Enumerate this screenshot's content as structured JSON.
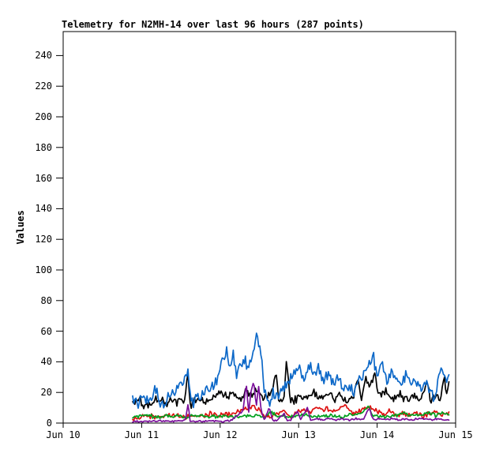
{
  "colors": {
    "background": "#ffffff",
    "text": "#000000",
    "plot_border": "#000000"
  },
  "chart_data": {
    "type": "line",
    "title": "Telemetry for N2MH-14 over last 96 hours (287 points)",
    "ylabel": "Values",
    "xlabel": "",
    "grid": false,
    "legend": "none",
    "ylim": [
      0,
      256
    ],
    "yticks": [
      0,
      20,
      40,
      60,
      80,
      100,
      120,
      140,
      160,
      180,
      200,
      220,
      240
    ],
    "xticks": [
      "Jun 10",
      "Jun 11",
      "Jun 12",
      "Jun 13",
      "Jun 14",
      "Jun 15"
    ],
    "x_span_days": 5,
    "points_per_series": 287,
    "time_window_hours": 96,
    "data_start_day": 0.885,
    "data_end_day": 4.914,
    "series": [
      {
        "name": "series-red",
        "color": "#dd1010",
        "noise": 1.3,
        "keyframes": [
          [
            0,
            3
          ],
          [
            4,
            5
          ],
          [
            8,
            4
          ],
          [
            12,
            6
          ],
          [
            16,
            4
          ],
          [
            20,
            5
          ],
          [
            24,
            6
          ],
          [
            28,
            5
          ],
          [
            32,
            7
          ],
          [
            34,
            10
          ],
          [
            36,
            11
          ],
          [
            38,
            9
          ],
          [
            40,
            5
          ],
          [
            42,
            4
          ],
          [
            44,
            6
          ],
          [
            46,
            8
          ],
          [
            48,
            5
          ],
          [
            50,
            7
          ],
          [
            52,
            9
          ],
          [
            54,
            7
          ],
          [
            56,
            10
          ],
          [
            57.5,
            8
          ],
          [
            59,
            10
          ],
          [
            61,
            7
          ],
          [
            63,
            10
          ],
          [
            64.5,
            12
          ],
          [
            66,
            8
          ],
          [
            68,
            6
          ],
          [
            70,
            9
          ],
          [
            72,
            11
          ],
          [
            74,
            8
          ],
          [
            76,
            6
          ],
          [
            78,
            8
          ],
          [
            80,
            5
          ],
          [
            82,
            7
          ],
          [
            84,
            5
          ],
          [
            86,
            7
          ],
          [
            88,
            4
          ],
          [
            90,
            6
          ],
          [
            92,
            8
          ],
          [
            94,
            5
          ],
          [
            96,
            7
          ]
        ]
      },
      {
        "name": "series-green",
        "color": "#00a01e",
        "noise": 0.9,
        "keyframes": [
          [
            0,
            4
          ],
          [
            4,
            5
          ],
          [
            8,
            4
          ],
          [
            12,
            5
          ],
          [
            16,
            4
          ],
          [
            20,
            5
          ],
          [
            24,
            4
          ],
          [
            28,
            5
          ],
          [
            32,
            4
          ],
          [
            36,
            5
          ],
          [
            40,
            4
          ],
          [
            42,
            7
          ],
          [
            44,
            5
          ],
          [
            48,
            4
          ],
          [
            52,
            5
          ],
          [
            56,
            4
          ],
          [
            60,
            5
          ],
          [
            64,
            4
          ],
          [
            66,
            6
          ],
          [
            68,
            5
          ],
          [
            70,
            8
          ],
          [
            71.8,
            11
          ],
          [
            73,
            5
          ],
          [
            76,
            4
          ],
          [
            80,
            5
          ],
          [
            82,
            7
          ],
          [
            84,
            5
          ],
          [
            86,
            6
          ],
          [
            88,
            5
          ],
          [
            90,
            7
          ],
          [
            92,
            5
          ],
          [
            94,
            7
          ],
          [
            96,
            5
          ]
        ]
      },
      {
        "name": "series-black",
        "color": "#000000",
        "noise": 2.4,
        "keyframes": [
          [
            0,
            13
          ],
          [
            2,
            15
          ],
          [
            4,
            11
          ],
          [
            6,
            14
          ],
          [
            8,
            16
          ],
          [
            10,
            12
          ],
          [
            12,
            15
          ],
          [
            14,
            13
          ],
          [
            16,
            17
          ],
          [
            16.8,
            33
          ],
          [
            17.5,
            12
          ],
          [
            19,
            14
          ],
          [
            21,
            16
          ],
          [
            23,
            13
          ],
          [
            25,
            17
          ],
          [
            27,
            20
          ],
          [
            29,
            16
          ],
          [
            31,
            19
          ],
          [
            33,
            15
          ],
          [
            34.5,
            21
          ],
          [
            36,
            17
          ],
          [
            37.5,
            22
          ],
          [
            39,
            18
          ],
          [
            40.5,
            15
          ],
          [
            42,
            21
          ],
          [
            43.5,
            31
          ],
          [
            44.5,
            14
          ],
          [
            46,
            18
          ],
          [
            46.8,
            42
          ],
          [
            47.6,
            16
          ],
          [
            49,
            14
          ],
          [
            51,
            18
          ],
          [
            53,
            15
          ],
          [
            55,
            19
          ],
          [
            57,
            16
          ],
          [
            59,
            20
          ],
          [
            61,
            15
          ],
          [
            63,
            18
          ],
          [
            65,
            14
          ],
          [
            67,
            17
          ],
          [
            68.5,
            28
          ],
          [
            69.5,
            15
          ],
          [
            70.8,
            30
          ],
          [
            72,
            24
          ],
          [
            73.5,
            30
          ],
          [
            75,
            18
          ],
          [
            77,
            22
          ],
          [
            79,
            16
          ],
          [
            81,
            20
          ],
          [
            83,
            15
          ],
          [
            85,
            18
          ],
          [
            87,
            14
          ],
          [
            89.3,
            28
          ],
          [
            90.5,
            14
          ],
          [
            92,
            18
          ],
          [
            93.5,
            16
          ],
          [
            94.6,
            30
          ],
          [
            95.3,
            18
          ],
          [
            96,
            25
          ]
        ]
      },
      {
        "name": "series-blue",
        "color": "#0c68c8",
        "noise": 3.2,
        "keyframes": [
          [
            0,
            15
          ],
          [
            1.5,
            12
          ],
          [
            3,
            19
          ],
          [
            5,
            13
          ],
          [
            7,
            22
          ],
          [
            9,
            12
          ],
          [
            11,
            18
          ],
          [
            13,
            20
          ],
          [
            14,
            25
          ],
          [
            15.5,
            28
          ],
          [
            16.8,
            34
          ],
          [
            17.8,
            12
          ],
          [
            19,
            16
          ],
          [
            21,
            19
          ],
          [
            23,
            21
          ],
          [
            25,
            26
          ],
          [
            26,
            31
          ],
          [
            27.5,
            42
          ],
          [
            28.5,
            48
          ],
          [
            29.5,
            38
          ],
          [
            30.5,
            47
          ],
          [
            31.5,
            30
          ],
          [
            33,
            37
          ],
          [
            34,
            42
          ],
          [
            35,
            35
          ],
          [
            36.5,
            45
          ],
          [
            37.6,
            62
          ],
          [
            38.3,
            52
          ],
          [
            39,
            45
          ],
          [
            40,
            22
          ],
          [
            41.5,
            14
          ],
          [
            43,
            20
          ],
          [
            44.5,
            17
          ],
          [
            46,
            24
          ],
          [
            47.5,
            28
          ],
          [
            49,
            32
          ],
          [
            50.5,
            36
          ],
          [
            52,
            30
          ],
          [
            53.5,
            38
          ],
          [
            55,
            33
          ],
          [
            56.5,
            36
          ],
          [
            58,
            28
          ],
          [
            59.5,
            32
          ],
          [
            61,
            25
          ],
          [
            62.5,
            28
          ],
          [
            64,
            22
          ],
          [
            65.5,
            25
          ],
          [
            67,
            20
          ],
          [
            68.5,
            26
          ],
          [
            70,
            30
          ],
          [
            71.5,
            38
          ],
          [
            73,
            45
          ],
          [
            74,
            32
          ],
          [
            75.5,
            40
          ],
          [
            77,
            28
          ],
          [
            78.5,
            34
          ],
          [
            80,
            30
          ],
          [
            81.5,
            27
          ],
          [
            83,
            32
          ],
          [
            84.5,
            25
          ],
          [
            86,
            28
          ],
          [
            87.5,
            22
          ],
          [
            89,
            25
          ],
          [
            90.5,
            20
          ],
          [
            91.5,
            15
          ],
          [
            92.5,
            25
          ],
          [
            93.5,
            35
          ],
          [
            95,
            28
          ],
          [
            96,
            33
          ]
        ]
      },
      {
        "name": "series-purple",
        "color": "#7a0f9a",
        "noise": 0.5,
        "keyframes": [
          [
            0,
            1
          ],
          [
            4,
            1
          ],
          [
            8,
            1.5
          ],
          [
            12,
            1
          ],
          [
            16,
            2
          ],
          [
            16.8,
            12
          ],
          [
            17.5,
            1
          ],
          [
            20,
            1
          ],
          [
            24,
            1.5
          ],
          [
            28,
            1
          ],
          [
            30,
            2
          ],
          [
            33.5,
            8
          ],
          [
            34.5,
            26
          ],
          [
            35.2,
            6
          ],
          [
            36,
            22
          ],
          [
            36.8,
            27
          ],
          [
            37.5,
            10
          ],
          [
            38.2,
            25
          ],
          [
            39,
            8
          ],
          [
            40,
            2
          ],
          [
            41.5,
            10
          ],
          [
            42.5,
            1.5
          ],
          [
            44,
            2
          ],
          [
            46,
            6
          ],
          [
            47,
            1.5
          ],
          [
            48,
            2
          ],
          [
            50,
            8
          ],
          [
            51,
            2
          ],
          [
            53,
            10
          ],
          [
            54,
            2
          ],
          [
            56,
            3
          ],
          [
            58,
            2
          ],
          [
            60,
            3
          ],
          [
            62,
            2
          ],
          [
            64,
            2.5
          ],
          [
            66,
            2
          ],
          [
            68,
            3
          ],
          [
            70,
            2
          ],
          [
            71.8,
            10
          ],
          [
            73,
            2
          ],
          [
            75,
            3
          ],
          [
            77,
            2
          ],
          [
            79,
            3
          ],
          [
            81,
            2
          ],
          [
            83,
            3
          ],
          [
            85,
            2
          ],
          [
            87,
            3
          ],
          [
            89,
            2.5
          ],
          [
            91,
            2
          ],
          [
            93,
            3
          ],
          [
            95,
            2
          ],
          [
            96,
            2
          ]
        ]
      }
    ]
  }
}
